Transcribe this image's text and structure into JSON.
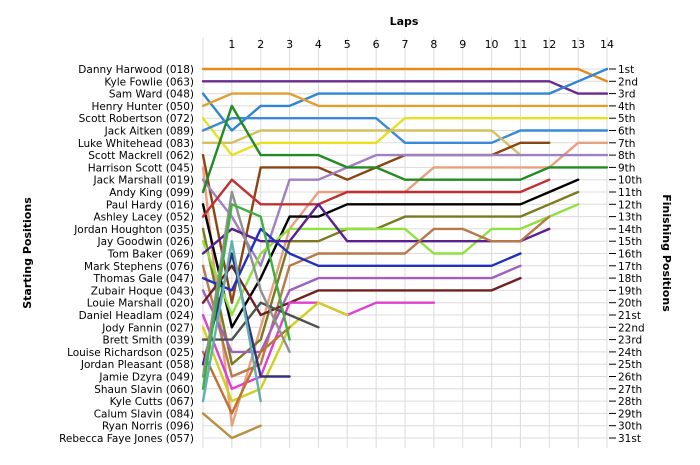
{
  "chart_data": {
    "type": "line",
    "title": "Laps",
    "xlabel": "Laps",
    "ylabel_left": "Starting Positions",
    "ylabel_right": "Finishing Positions",
    "laps": [
      1,
      2,
      3,
      4,
      5,
      6,
      7,
      8,
      9,
      10,
      11,
      12,
      13,
      14
    ],
    "xlim": [
      0,
      14
    ],
    "ylim": [
      1,
      31
    ],
    "grid": true,
    "starting_grid": [
      "Danny Harwood (018)",
      "Kyle Fowlie (063)",
      "Sam Ward (048)",
      "Henry Hunter (050)",
      "Scott Robertson (072)",
      "Jack Aitken (089)",
      "Luke Whitehead (083)",
      "Scott Mackrell (062)",
      "Harrison Scott (045)",
      "Jack Marshall (019)",
      "Andy King (099)",
      "Paul Hardy (016)",
      "Ashley Lacey (052)",
      "Jordan Houghton (035)",
      "Jay Goodwin (026)",
      "Tom Baker (069)",
      "Mark Stephens (076)",
      "Thomas Gale (047)",
      "Zubair Hoque (043)",
      "Louie Marshall (020)",
      "Daniel Headlam (024)",
      "Jody Fannin (027)",
      "Brett Smith (039)",
      "Louise Richardson (025)",
      "Jordan Pleasant (058)",
      "Jamie Dzyra (049)",
      "Shaun Slavin (060)",
      "Kyle Cutts (067)",
      "Calum Slavin (084)",
      "Ryan Norris (096)",
      "Rebecca Faye Jones (057)"
    ],
    "finishing_positions": [
      "1st",
      "2nd",
      "3rd",
      "4th",
      "5th",
      "6th",
      "7th",
      "8th",
      "9th",
      "10th",
      "11th",
      "12th",
      "13th",
      "14th",
      "15th",
      "16th",
      "17th",
      "18th",
      "19th",
      "20th",
      "21st",
      "22nd",
      "23rd",
      "24th",
      "25th",
      "26th",
      "27th",
      "28th",
      "29th",
      "30th",
      "31st"
    ],
    "series": [
      {
        "color": "#e8891c",
        "values": [
          1,
          1,
          1,
          1,
          1,
          1,
          1,
          1,
          1,
          1,
          1,
          1,
          1,
          2
        ]
      },
      {
        "color": "#6a2a8f",
        "values": [
          2,
          2,
          2,
          2,
          2,
          2,
          2,
          2,
          2,
          2,
          2,
          2,
          3,
          3
        ]
      },
      {
        "color": "#2f86d0",
        "values": [
          6,
          4,
          4,
          3,
          3,
          3,
          3,
          3,
          3,
          3,
          3,
          3,
          2,
          1
        ]
      },
      {
        "color": "#e0a030",
        "values": [
          3,
          3,
          3,
          4,
          4,
          4,
          4,
          4,
          4,
          4,
          4,
          4,
          4,
          4
        ]
      },
      {
        "color": "#e8e020",
        "values": [
          8,
          7,
          7,
          7,
          7,
          7,
          5,
          5,
          5,
          5,
          5,
          5,
          5,
          5
        ]
      },
      {
        "color": "#3a8ad8",
        "values": [
          5,
          5,
          5,
          5,
          5,
          5,
          7,
          7,
          7,
          7,
          6,
          6,
          6,
          6
        ]
      },
      {
        "color": "#d4c060",
        "values": [
          7,
          6,
          6,
          6,
          6,
          6,
          6,
          6,
          6,
          6,
          8
        ]
      },
      {
        "color": "#8b4513",
        "values": [
          20,
          9,
          9,
          9,
          10,
          9,
          8,
          8,
          8,
          8,
          7,
          7
        ]
      },
      {
        "color": "#e8a080",
        "values": [
          30,
          22,
          14,
          11,
          11,
          11,
          11,
          9,
          9,
          9,
          9,
          9,
          7,
          7
        ]
      },
      {
        "color": "#a080c0",
        "values": [
          13,
          17,
          10,
          10,
          9,
          8,
          8,
          8,
          8,
          8,
          8,
          8,
          8,
          8
        ]
      },
      {
        "color": "#228b22",
        "values": [
          4,
          8,
          8,
          8,
          9,
          9,
          10,
          10,
          10,
          10,
          10,
          9,
          9,
          9
        ]
      },
      {
        "color": "#000000",
        "values": [
          22,
          18,
          13,
          13,
          12,
          12,
          12,
          12,
          12,
          12,
          12,
          11,
          10
        ]
      },
      {
        "color": "#c03030",
        "values": [
          10,
          12,
          12,
          12,
          11,
          11,
          11,
          11,
          11,
          11,
          11,
          10
        ]
      },
      {
        "color": "#7a7a20",
        "values": [
          25,
          23,
          15,
          15,
          14,
          14,
          13,
          13,
          13,
          13,
          13,
          12,
          11
        ]
      },
      {
        "color": "#90e040",
        "values": [
          21,
          16,
          14,
          14,
          14,
          14,
          14,
          16,
          16,
          14,
          14,
          13,
          12
        ]
      },
      {
        "color": "#5a2090",
        "values": [
          14,
          15,
          15,
          12,
          15,
          15,
          15,
          15,
          15,
          15,
          15,
          14
        ]
      },
      {
        "color": "#b8784a",
        "values": [
          26,
          25,
          17,
          16,
          16,
          16,
          16,
          14,
          14,
          15,
          15,
          13
        ]
      },
      {
        "color": "#2030c0",
        "values": [
          19,
          14,
          16,
          17,
          17,
          17,
          17,
          17,
          17,
          17,
          16
        ]
      },
      {
        "color": "#a060c0",
        "values": [
          24,
          24,
          19,
          18,
          18,
          18,
          18,
          18,
          18,
          18,
          17
        ]
      },
      {
        "color": "#702020",
        "values": [
          17,
          21,
          20,
          19,
          19,
          19,
          19,
          19,
          19,
          19,
          18
        ]
      },
      {
        "color": "#e040d0",
        "values": [
          27,
          26,
          20,
          20,
          21,
          20,
          20,
          20
        ]
      },
      {
        "color": "#d0d020",
        "values": [
          28,
          27,
          22,
          20,
          21
        ]
      },
      {
        "color": "#505050",
        "values": [
          23,
          20,
          21,
          22
        ]
      },
      {
        "color": "#c07030",
        "values": [
          29,
          24,
          22
        ]
      },
      {
        "color": "#303080",
        "values": [
          16,
          26,
          26
        ]
      },
      {
        "color": "#909090",
        "values": [
          11,
          19,
          24
        ]
      },
      {
        "color": "#40b040",
        "values": [
          12,
          13,
          23
        ]
      },
      {
        "color": "#60b0b0",
        "values": [
          15,
          28
        ]
      },
      {
        "color": "#b89040",
        "values": [
          31,
          30
        ]
      }
    ]
  }
}
